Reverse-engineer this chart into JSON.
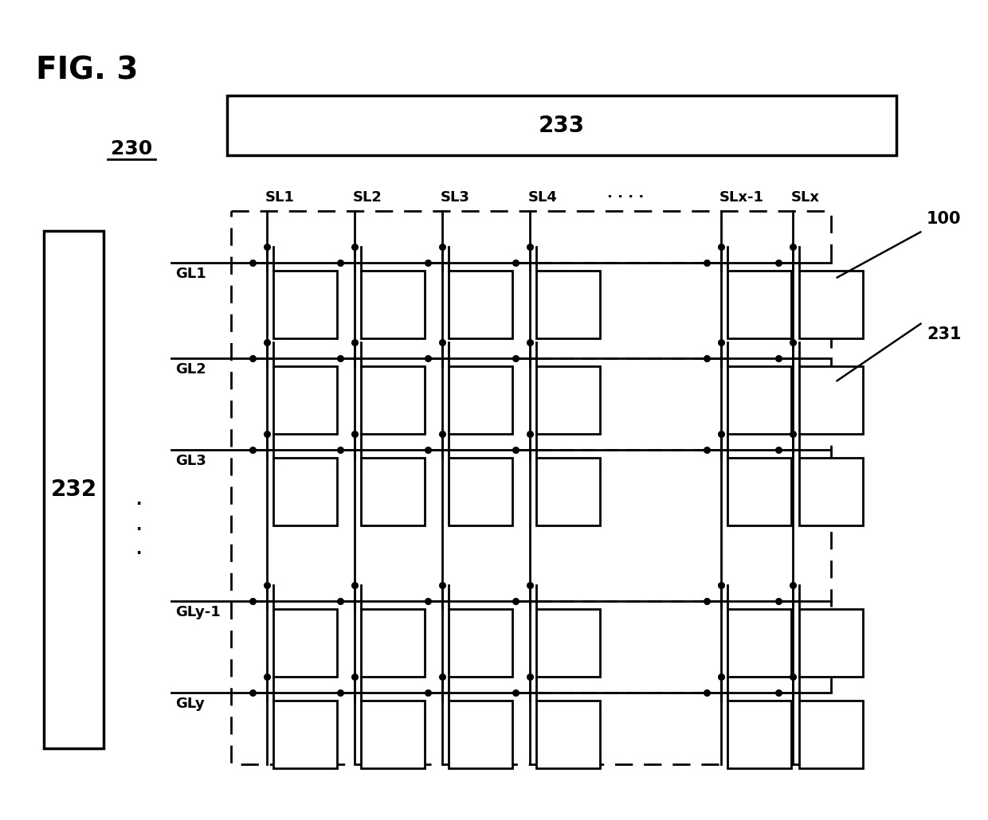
{
  "bg_color": "#ffffff",
  "title": "FIG. 3",
  "label_230": "230",
  "label_232": "232",
  "label_233": "233",
  "label_231": "231",
  "label_100": "100",
  "sl_labels": [
    "SL1",
    "SL2",
    "SL3",
    "SL4",
    ". . . .",
    "SLx-1",
    "SLx"
  ],
  "gl_labels": [
    "GL1",
    "GL2",
    "GL3",
    "GLy-1",
    "GLy"
  ],
  "dots_col_text": ". . . .",
  "dots_row_text": ".\n.\n."
}
